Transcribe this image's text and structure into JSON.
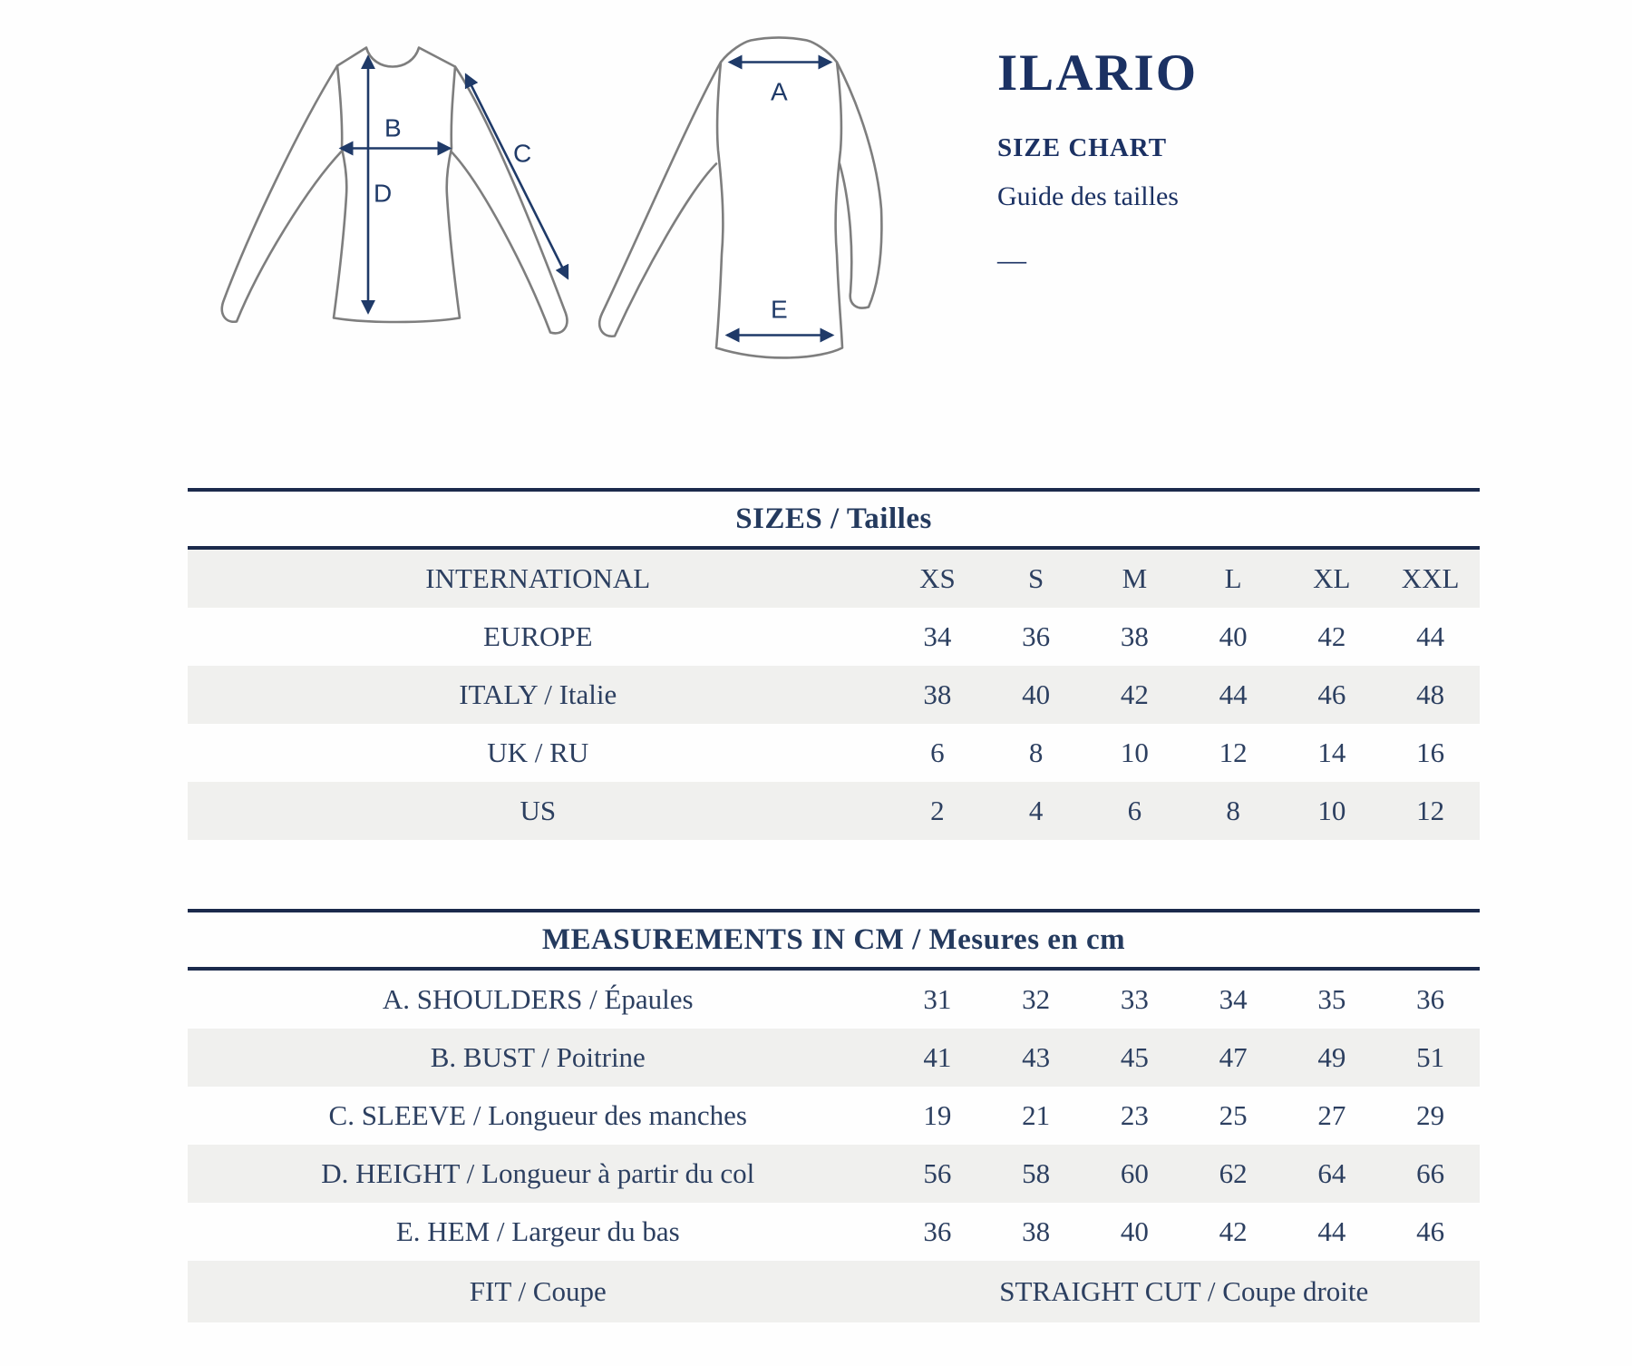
{
  "brand": {
    "title": "ILARIO",
    "size_chart_label": "SIZE CHART",
    "guide_label": "Guide des tailles",
    "dash": "—"
  },
  "diagram": {
    "labels": {
      "a": "A",
      "b": "B",
      "c": "C",
      "d": "D",
      "e": "E"
    }
  },
  "sizes_table": {
    "title": "SIZES / Tailles",
    "rows": [
      {
        "label": "INTERNATIONAL",
        "values": [
          "XS",
          "S",
          "M",
          "L",
          "XL",
          "XXL"
        ]
      },
      {
        "label": "EUROPE",
        "values": [
          "34",
          "36",
          "38",
          "40",
          "42",
          "44"
        ]
      },
      {
        "label": "ITALY / Italie",
        "values": [
          "38",
          "40",
          "42",
          "44",
          "46",
          "48"
        ]
      },
      {
        "label": "UK / RU",
        "values": [
          "6",
          "8",
          "10",
          "12",
          "14",
          "16"
        ]
      },
      {
        "label": "US",
        "values": [
          "2",
          "4",
          "6",
          "8",
          "10",
          "12"
        ]
      }
    ]
  },
  "measurements_table": {
    "title": "MEASUREMENTS IN CM / Mesures en cm",
    "rows": [
      {
        "label": "A. SHOULDERS / Épaules",
        "values": [
          "31",
          "32",
          "33",
          "34",
          "35",
          "36"
        ]
      },
      {
        "label": "B. BUST / Poitrine",
        "values": [
          "41",
          "43",
          "45",
          "47",
          "49",
          "51"
        ]
      },
      {
        "label": "C. SLEEVE / Longueur des manches",
        "values": [
          "19",
          "21",
          "23",
          "25",
          "27",
          "29"
        ]
      },
      {
        "label": "D. HEIGHT / Longueur à partir du col",
        "values": [
          "56",
          "58",
          "60",
          "62",
          "64",
          "66"
        ]
      },
      {
        "label": "E. HEM / Largeur du bas",
        "values": [
          "36",
          "38",
          "40",
          "42",
          "44",
          "46"
        ]
      }
    ],
    "fit_row": {
      "label": "FIT / Coupe",
      "value": "STRAIGHT CUT / Coupe droite"
    }
  },
  "colors": {
    "navy_title": "#1b3163",
    "navy_text": "#2c3f60",
    "navy_line": "#1b2a4c",
    "arrow_navy": "#1f3a68",
    "stripe_gray": "#f0f0ee",
    "garment_outline": "#7e7e7e"
  }
}
